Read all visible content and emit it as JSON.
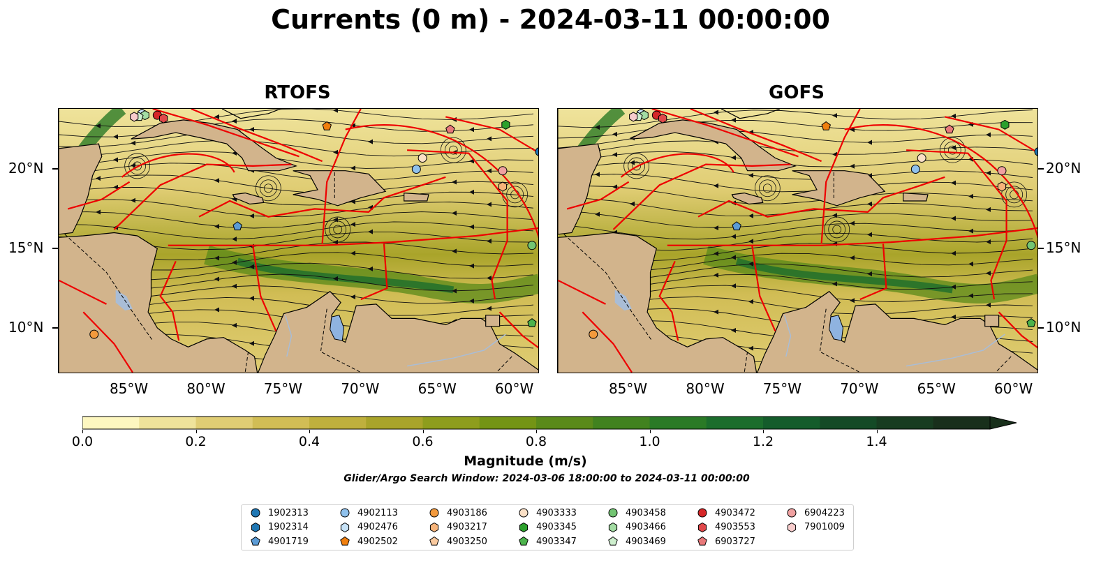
{
  "title": "Currents (0 m) - 2024-03-11 00:00:00",
  "panels": [
    {
      "name": "RTOFS",
      "map_markers": [
        "1902313",
        "4901719",
        "4902113",
        "4902476",
        "4902502",
        "4903186",
        "4903217",
        "4903333",
        "4903345",
        "4903347",
        "4903458",
        "4903466",
        "4903469",
        "4903472",
        "4903553",
        "6903727",
        "6904223",
        "7901009"
      ]
    },
    {
      "name": "GOFS",
      "map_markers": [
        "1902313",
        "4901719",
        "4902113",
        "4902476",
        "4902502",
        "4903186",
        "4903217",
        "4903333",
        "4903345",
        "4903347",
        "4903458",
        "4903466",
        "4903469",
        "4903472",
        "4903553",
        "6903727",
        "6904223",
        "7901009"
      ]
    }
  ],
  "x_ticks": [
    "85°W",
    "80°W",
    "75°W",
    "70°W",
    "65°W",
    "60°W"
  ],
  "y_ticks": [
    "20°N",
    "15°N",
    "10°N"
  ],
  "map_extent": {
    "lon_min": -89.6,
    "lon_max": -58.4,
    "lat_min": 7.1,
    "lat_max": 23.8
  },
  "colorbar": {
    "label": "Magnitude (m/s)",
    "ticks": [
      "0.0",
      "0.2",
      "0.4",
      "0.6",
      "0.8",
      "1.0",
      "1.2",
      "1.4"
    ],
    "range": [
      0,
      1.6
    ],
    "extend": "max",
    "colors": [
      "#fdf7c0",
      "#efe39b",
      "#e0cd74",
      "#d1bd55",
      "#bfb03d",
      "#a9a42a",
      "#8e9d1d",
      "#749415",
      "#5a8a1a",
      "#41821f",
      "#2a7a26",
      "#1b6d2c",
      "#145c2b",
      "#144a26",
      "#173c20",
      "#182f1b"
    ]
  },
  "search_window_note": "Glider/Argo Search Window: 2024-03-06 18:00:00 to 2024-03-11 00:00:00",
  "legend": [
    {
      "id": "1902313",
      "color": "#1f77b4",
      "shape": "circle"
    },
    {
      "id": "1902314",
      "color": "#1f77b4",
      "shape": "hexagon"
    },
    {
      "id": "4901719",
      "color": "#5b9bd5",
      "shape": "pentagon"
    },
    {
      "id": "4902113",
      "color": "#8fc1ec",
      "shape": "circle"
    },
    {
      "id": "4902476",
      "color": "#c6e2f7",
      "shape": "hexagon"
    },
    {
      "id": "4902502",
      "color": "#f07f0e",
      "shape": "pentagon"
    },
    {
      "id": "4903186",
      "color": "#f39a3d",
      "shape": "circle"
    },
    {
      "id": "4903217",
      "color": "#f7b47a",
      "shape": "hexagon"
    },
    {
      "id": "4903250",
      "color": "#f9c99e",
      "shape": "pentagon"
    },
    {
      "id": "4903333",
      "color": "#fbe0c6",
      "shape": "circle"
    },
    {
      "id": "4903345",
      "color": "#2ca02c",
      "shape": "hexagon"
    },
    {
      "id": "4903347",
      "color": "#4cb34c",
      "shape": "pentagon"
    },
    {
      "id": "4903458",
      "color": "#73c573",
      "shape": "circle"
    },
    {
      "id": "4903466",
      "color": "#a3dca3",
      "shape": "hexagon"
    },
    {
      "id": "4903469",
      "color": "#cdeecd",
      "shape": "pentagon"
    },
    {
      "id": "4903472",
      "color": "#d62728",
      "shape": "circle"
    },
    {
      "id": "4903553",
      "color": "#e0484a",
      "shape": "hexagon"
    },
    {
      "id": "6903727",
      "color": "#e8797a",
      "shape": "pentagon"
    },
    {
      "id": "6904223",
      "color": "#f0a1a1",
      "shape": "circle"
    },
    {
      "id": "7901009",
      "color": "#f7cccc",
      "shape": "hexagon"
    }
  ]
}
